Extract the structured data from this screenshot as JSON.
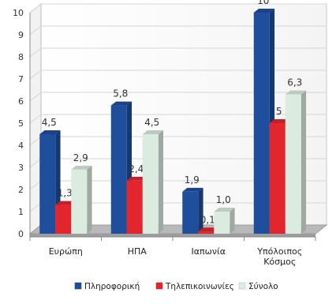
{
  "chart_data": {
    "type": "bar",
    "title": "",
    "xlabel": "",
    "ylabel": "",
    "ylim": [
      0,
      10
    ],
    "yticks": [
      "0",
      "1",
      "2",
      "3",
      "4",
      "5",
      "6",
      "7",
      "8",
      "9",
      "10"
    ],
    "categories": [
      [
        "Ευρώπη"
      ],
      [
        "ΗΠΑ"
      ],
      [
        "Ιαπωνία"
      ],
      [
        "Υπόλοιπος",
        "Κόσμος"
      ]
    ],
    "grid": true,
    "legend_position": "bottom",
    "series": [
      {
        "name": "Πληροφορική",
        "color": "#1f4e9c",
        "values": [
          4.5,
          5.8,
          1.9,
          10
        ],
        "labels": [
          "4,5",
          "5,8",
          "1,9",
          "10"
        ]
      },
      {
        "name": "Τηλεπικοινωνίες",
        "color": "#e3262e",
        "values": [
          1.3,
          2.4,
          0.1,
          5
        ],
        "labels": [
          "1,3",
          "2,4",
          "0,1",
          "5"
        ]
      },
      {
        "name": "Σύνολο",
        "color": "#dcebe0",
        "values": [
          2.9,
          4.5,
          1.0,
          6.3
        ],
        "labels": [
          "2,9",
          "4,5",
          "1,0",
          "6,3"
        ]
      }
    ]
  }
}
